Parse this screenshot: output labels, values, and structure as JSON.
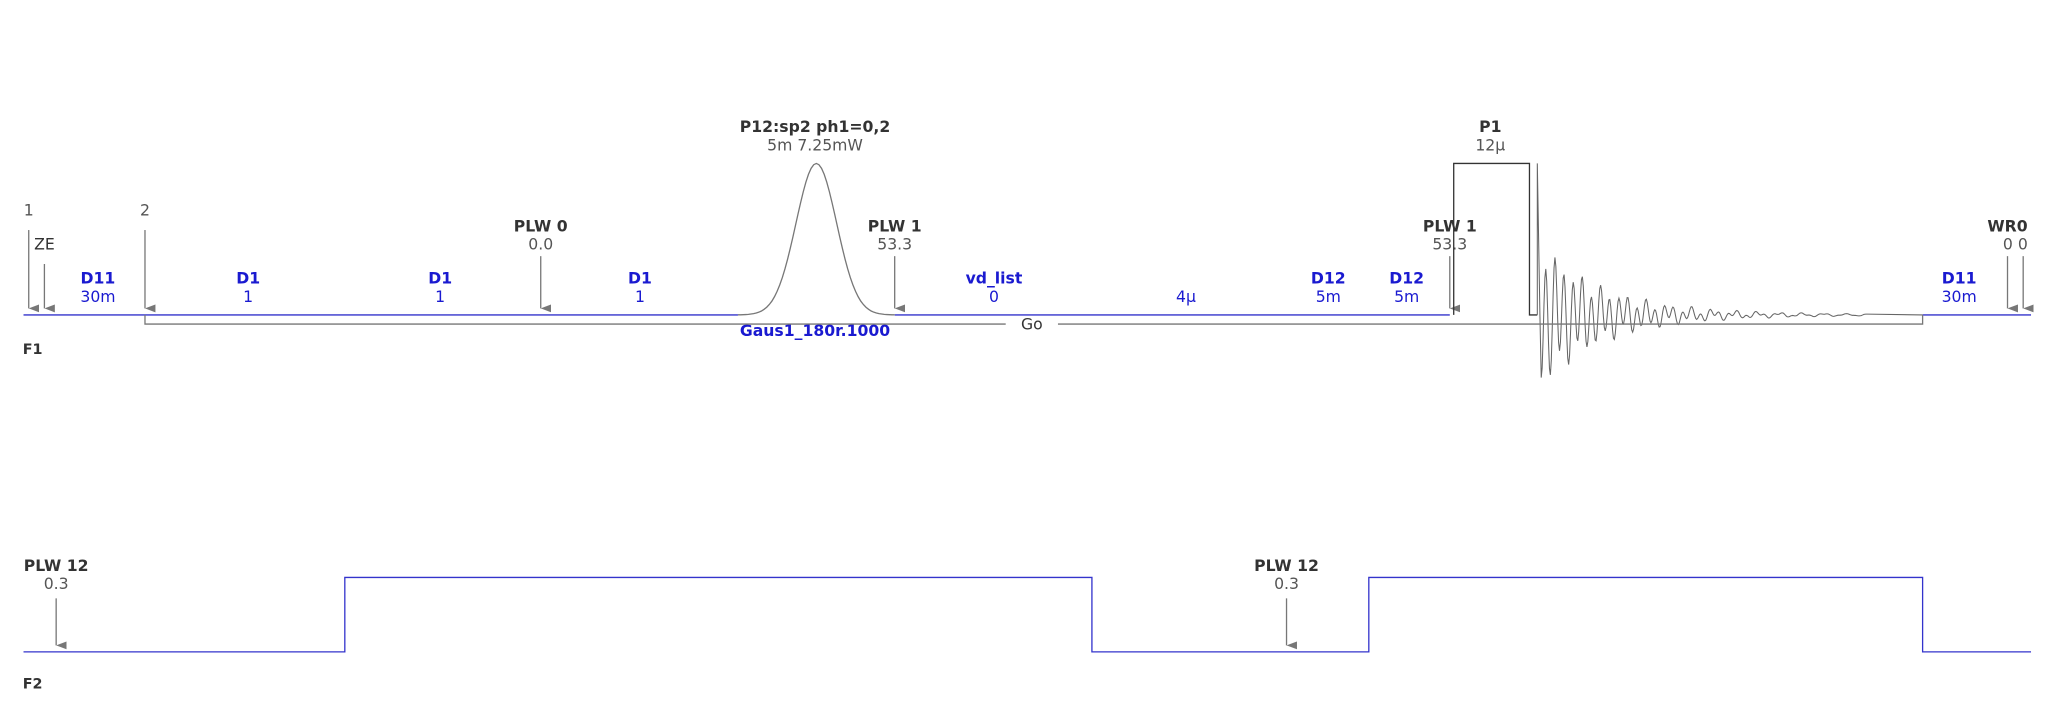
{
  "markers": [
    "1",
    "2"
  ],
  "f1": {
    "label": "F1",
    "delays": [
      {
        "name": "D11",
        "value": "30m"
      },
      {
        "name": "D1",
        "value": "1"
      },
      {
        "name": "D1",
        "value": "1"
      },
      {
        "name": "D1",
        "value": "1"
      },
      {
        "name": "vd_list",
        "value": "0"
      },
      {
        "value": "4μ"
      },
      {
        "name": "D12",
        "value": "5m"
      },
      {
        "name": "D12",
        "value": "5m"
      },
      {
        "name": "D11",
        "value": "30m"
      }
    ],
    "commands": [
      {
        "name": "ZE"
      },
      {
        "name": "PLW 0",
        "value": "0.0"
      },
      {
        "name": "PLW 1",
        "value": "53.3"
      },
      {
        "name": "PLW 1",
        "value": "53.3"
      },
      {
        "name": "WR0",
        "value": "0 0"
      }
    ],
    "pulses": [
      {
        "name": "P12:sp2 ph1=0,2",
        "value": "5m  7.25mW",
        "shape": "Gaus1_180r.1000"
      },
      {
        "name": "P1",
        "value": "12μ"
      }
    ],
    "loop": "Go"
  },
  "f2": {
    "label": "F2",
    "commands": [
      {
        "name": "PLW 12",
        "value": "0.3"
      },
      {
        "name": "PLW 12",
        "value": "0.3"
      }
    ]
  }
}
